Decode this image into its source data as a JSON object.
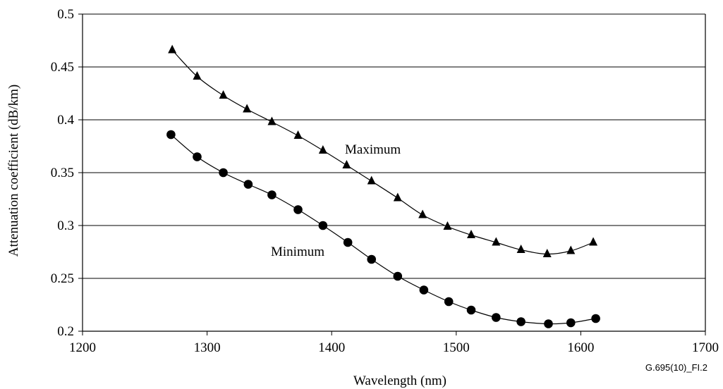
{
  "chart_data": {
    "type": "line",
    "title": "",
    "xlabel": "Wavelength (nm)",
    "ylabel": "Attenuation coefficient (dB/km)",
    "xlim": [
      1200,
      1700
    ],
    "ylim": [
      0.2,
      0.5
    ],
    "xticks": [
      "1200",
      "1300",
      "1400",
      "1500",
      "1600",
      "1700"
    ],
    "yticks": [
      "0.2",
      "0.25",
      "0.3",
      "0.35",
      "0.4",
      "0.45",
      "0.5"
    ],
    "grid": "horizontal",
    "legend": "none",
    "figure_id": "G.695(10)_FI.2",
    "series": [
      {
        "name": "Maximum",
        "marker": "triangle",
        "points": [
          {
            "x": 1272,
            "y": 0.466
          },
          {
            "x": 1292,
            "y": 0.441
          },
          {
            "x": 1313,
            "y": 0.423
          },
          {
            "x": 1332,
            "y": 0.41
          },
          {
            "x": 1352,
            "y": 0.398
          },
          {
            "x": 1373,
            "y": 0.385
          },
          {
            "x": 1393,
            "y": 0.371
          },
          {
            "x": 1412,
            "y": 0.357
          },
          {
            "x": 1432,
            "y": 0.342
          },
          {
            "x": 1453,
            "y": 0.326
          },
          {
            "x": 1473,
            "y": 0.31
          },
          {
            "x": 1493,
            "y": 0.299
          },
          {
            "x": 1512,
            "y": 0.291
          },
          {
            "x": 1532,
            "y": 0.284
          },
          {
            "x": 1552,
            "y": 0.277
          },
          {
            "x": 1573,
            "y": 0.273
          },
          {
            "x": 1592,
            "y": 0.276
          },
          {
            "x": 1610,
            "y": 0.284
          }
        ]
      },
      {
        "name": "Minimum",
        "marker": "circle",
        "points": [
          {
            "x": 1271,
            "y": 0.386
          },
          {
            "x": 1292,
            "y": 0.365
          },
          {
            "x": 1313,
            "y": 0.35
          },
          {
            "x": 1333,
            "y": 0.339
          },
          {
            "x": 1352,
            "y": 0.329
          },
          {
            "x": 1373,
            "y": 0.315
          },
          {
            "x": 1393,
            "y": 0.3
          },
          {
            "x": 1413,
            "y": 0.284
          },
          {
            "x": 1432,
            "y": 0.268
          },
          {
            "x": 1453,
            "y": 0.252
          },
          {
            "x": 1474,
            "y": 0.239
          },
          {
            "x": 1494,
            "y": 0.228
          },
          {
            "x": 1512,
            "y": 0.22
          },
          {
            "x": 1532,
            "y": 0.213
          },
          {
            "x": 1552,
            "y": 0.209
          },
          {
            "x": 1574,
            "y": 0.207
          },
          {
            "x": 1592,
            "y": 0.208
          },
          {
            "x": 1612,
            "y": 0.212
          }
        ]
      }
    ]
  }
}
